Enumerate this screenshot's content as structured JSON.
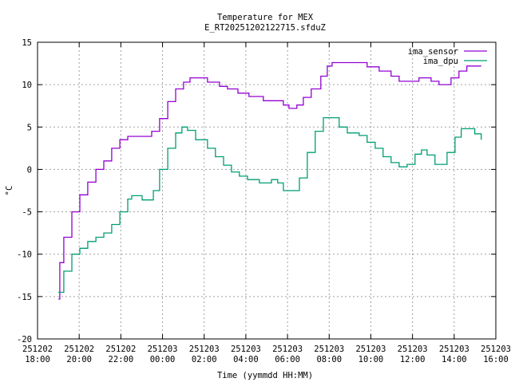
{
  "chart_data": {
    "type": "line",
    "title": "Temperature for MEX",
    "subtitle": "E_RT20251202122715.sfduZ",
    "xlabel": "Time (yymmdd HH:MM)",
    "ylabel": "°C",
    "x_units": "hours since 251202 18:00",
    "xlim": [
      0,
      22
    ],
    "ylim": [
      -20,
      15
    ],
    "yticks": [
      -20,
      -15,
      -10,
      -5,
      0,
      5,
      10,
      15
    ],
    "xticks": [
      {
        "h": 0,
        "date": "251202",
        "time": "18:00"
      },
      {
        "h": 2,
        "date": "251202",
        "time": "20:00"
      },
      {
        "h": 4,
        "date": "251202",
        "time": "22:00"
      },
      {
        "h": 6,
        "date": "251203",
        "time": "00:00"
      },
      {
        "h": 8,
        "date": "251203",
        "time": "02:00"
      },
      {
        "h": 10,
        "date": "251203",
        "time": "04:00"
      },
      {
        "h": 12,
        "date": "251203",
        "time": "06:00"
      },
      {
        "h": 14,
        "date": "251203",
        "time": "08:00"
      },
      {
        "h": 16,
        "date": "251203",
        "time": "10:00"
      },
      {
        "h": 18,
        "date": "251203",
        "time": "12:00"
      },
      {
        "h": 20,
        "date": "251203",
        "time": "14:00"
      },
      {
        "h": 22,
        "date": "251203",
        "time": "16:00"
      }
    ],
    "grid": true,
    "legend_position": "top-right",
    "series": [
      {
        "name": "ima_sensor",
        "color": "#9400d3",
        "points": [
          [
            1.0,
            -15.3
          ],
          [
            1.07,
            -11
          ],
          [
            1.26,
            -8
          ],
          [
            1.65,
            -5
          ],
          [
            2.03,
            -3
          ],
          [
            2.41,
            -1.5
          ],
          [
            2.8,
            0
          ],
          [
            3.18,
            1
          ],
          [
            3.56,
            2.5
          ],
          [
            3.95,
            3.5
          ],
          [
            4.33,
            3.9
          ],
          [
            4.79,
            3.9
          ],
          [
            5.33,
            3.9
          ],
          [
            5.48,
            4.5
          ],
          [
            5.86,
            6
          ],
          [
            6.25,
            8
          ],
          [
            6.63,
            9.5
          ],
          [
            7.01,
            10.3
          ],
          [
            7.32,
            10.8
          ],
          [
            8.08,
            10.8
          ],
          [
            8.16,
            10.3
          ],
          [
            8.62,
            10.3
          ],
          [
            8.74,
            9.8
          ],
          [
            9.12,
            9.5
          ],
          [
            9.62,
            9.0
          ],
          [
            10.15,
            8.6
          ],
          [
            10.77,
            8.6
          ],
          [
            10.84,
            8.1
          ],
          [
            11.61,
            8.1
          ],
          [
            11.8,
            7.6
          ],
          [
            12.07,
            7.2
          ],
          [
            12.45,
            7.6
          ],
          [
            12.76,
            8.5
          ],
          [
            13.14,
            9.5
          ],
          [
            13.6,
            11
          ],
          [
            13.91,
            12.2
          ],
          [
            14.14,
            12.6
          ],
          [
            15.63,
            12.6
          ],
          [
            15.82,
            12.1
          ],
          [
            16.4,
            11.6
          ],
          [
            16.97,
            11.0
          ],
          [
            17.36,
            10.4
          ],
          [
            18.12,
            10.4
          ],
          [
            18.31,
            10.8
          ],
          [
            18.89,
            10.4
          ],
          [
            19.27,
            10.0
          ],
          [
            19.5,
            10.0
          ],
          [
            19.85,
            10.8
          ],
          [
            20.23,
            11.6
          ],
          [
            20.61,
            12.2
          ],
          [
            21.3,
            12.2
          ]
        ]
      },
      {
        "name": "ima_dpu",
        "color": "#009e73",
        "points": [
          [
            1.0,
            -14.5
          ],
          [
            1.26,
            -12
          ],
          [
            1.65,
            -10
          ],
          [
            2.03,
            -9.3
          ],
          [
            2.41,
            -8.5
          ],
          [
            2.8,
            -8
          ],
          [
            3.18,
            -7.5
          ],
          [
            3.56,
            -6.5
          ],
          [
            3.95,
            -5
          ],
          [
            4.33,
            -3.5
          ],
          [
            4.52,
            -3.1
          ],
          [
            4.79,
            -3.1
          ],
          [
            5.02,
            -3.6
          ],
          [
            5.33,
            -3.6
          ],
          [
            5.56,
            -2.5
          ],
          [
            5.86,
            0
          ],
          [
            6.25,
            2.5
          ],
          [
            6.63,
            4.3
          ],
          [
            6.93,
            5.0
          ],
          [
            7.2,
            4.6
          ],
          [
            7.59,
            3.5
          ],
          [
            8.16,
            2.5
          ],
          [
            8.54,
            1.5
          ],
          [
            8.93,
            0.5
          ],
          [
            9.31,
            -0.3
          ],
          [
            9.69,
            -0.8
          ],
          [
            10.08,
            -1.2
          ],
          [
            10.46,
            -1.2
          ],
          [
            10.65,
            -1.6
          ],
          [
            11.03,
            -1.6
          ],
          [
            11.23,
            -1.2
          ],
          [
            11.53,
            -1.6
          ],
          [
            11.8,
            -2.5
          ],
          [
            12.3,
            -2.5
          ],
          [
            12.57,
            -1
          ],
          [
            12.95,
            2
          ],
          [
            13.33,
            4.5
          ],
          [
            13.72,
            6.1
          ],
          [
            14.1,
            6.1
          ],
          [
            14.48,
            5
          ],
          [
            14.87,
            4.3
          ],
          [
            15.44,
            4
          ],
          [
            15.82,
            3.2
          ],
          [
            16.21,
            2.5
          ],
          [
            16.59,
            1.5
          ],
          [
            16.97,
            0.8
          ],
          [
            17.36,
            0.3
          ],
          [
            17.74,
            0.6
          ],
          [
            18.12,
            1.8
          ],
          [
            18.43,
            2.3
          ],
          [
            18.7,
            1.7
          ],
          [
            19.08,
            0.6
          ],
          [
            19.35,
            0.6
          ],
          [
            19.66,
            2
          ],
          [
            20.04,
            3.8
          ],
          [
            20.34,
            4.8
          ],
          [
            20.73,
            4.8
          ],
          [
            20.99,
            4.2
          ],
          [
            21.3,
            3.5
          ]
        ]
      }
    ]
  }
}
